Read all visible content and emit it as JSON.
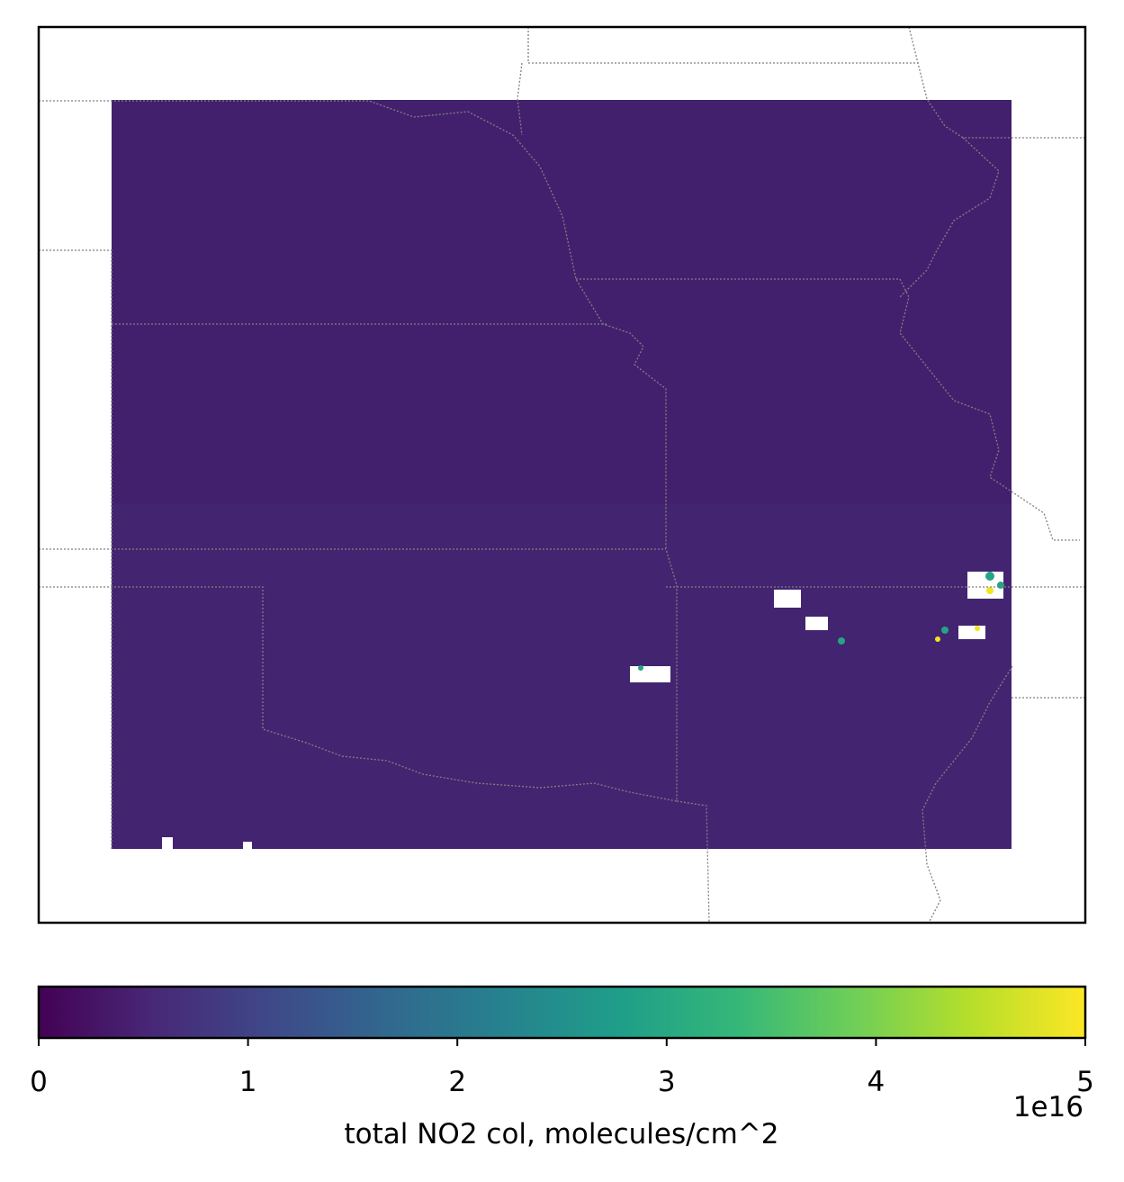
{
  "chart_data": {
    "type": "map",
    "colorbar": {
      "label": "total NO2 col, molecules/cm^2",
      "offset_label": "1e16",
      "colormap": "viridis",
      "lim": [
        0,
        5
      ],
      "ticks": [
        0,
        1,
        2,
        3,
        4,
        5
      ]
    }
  }
}
